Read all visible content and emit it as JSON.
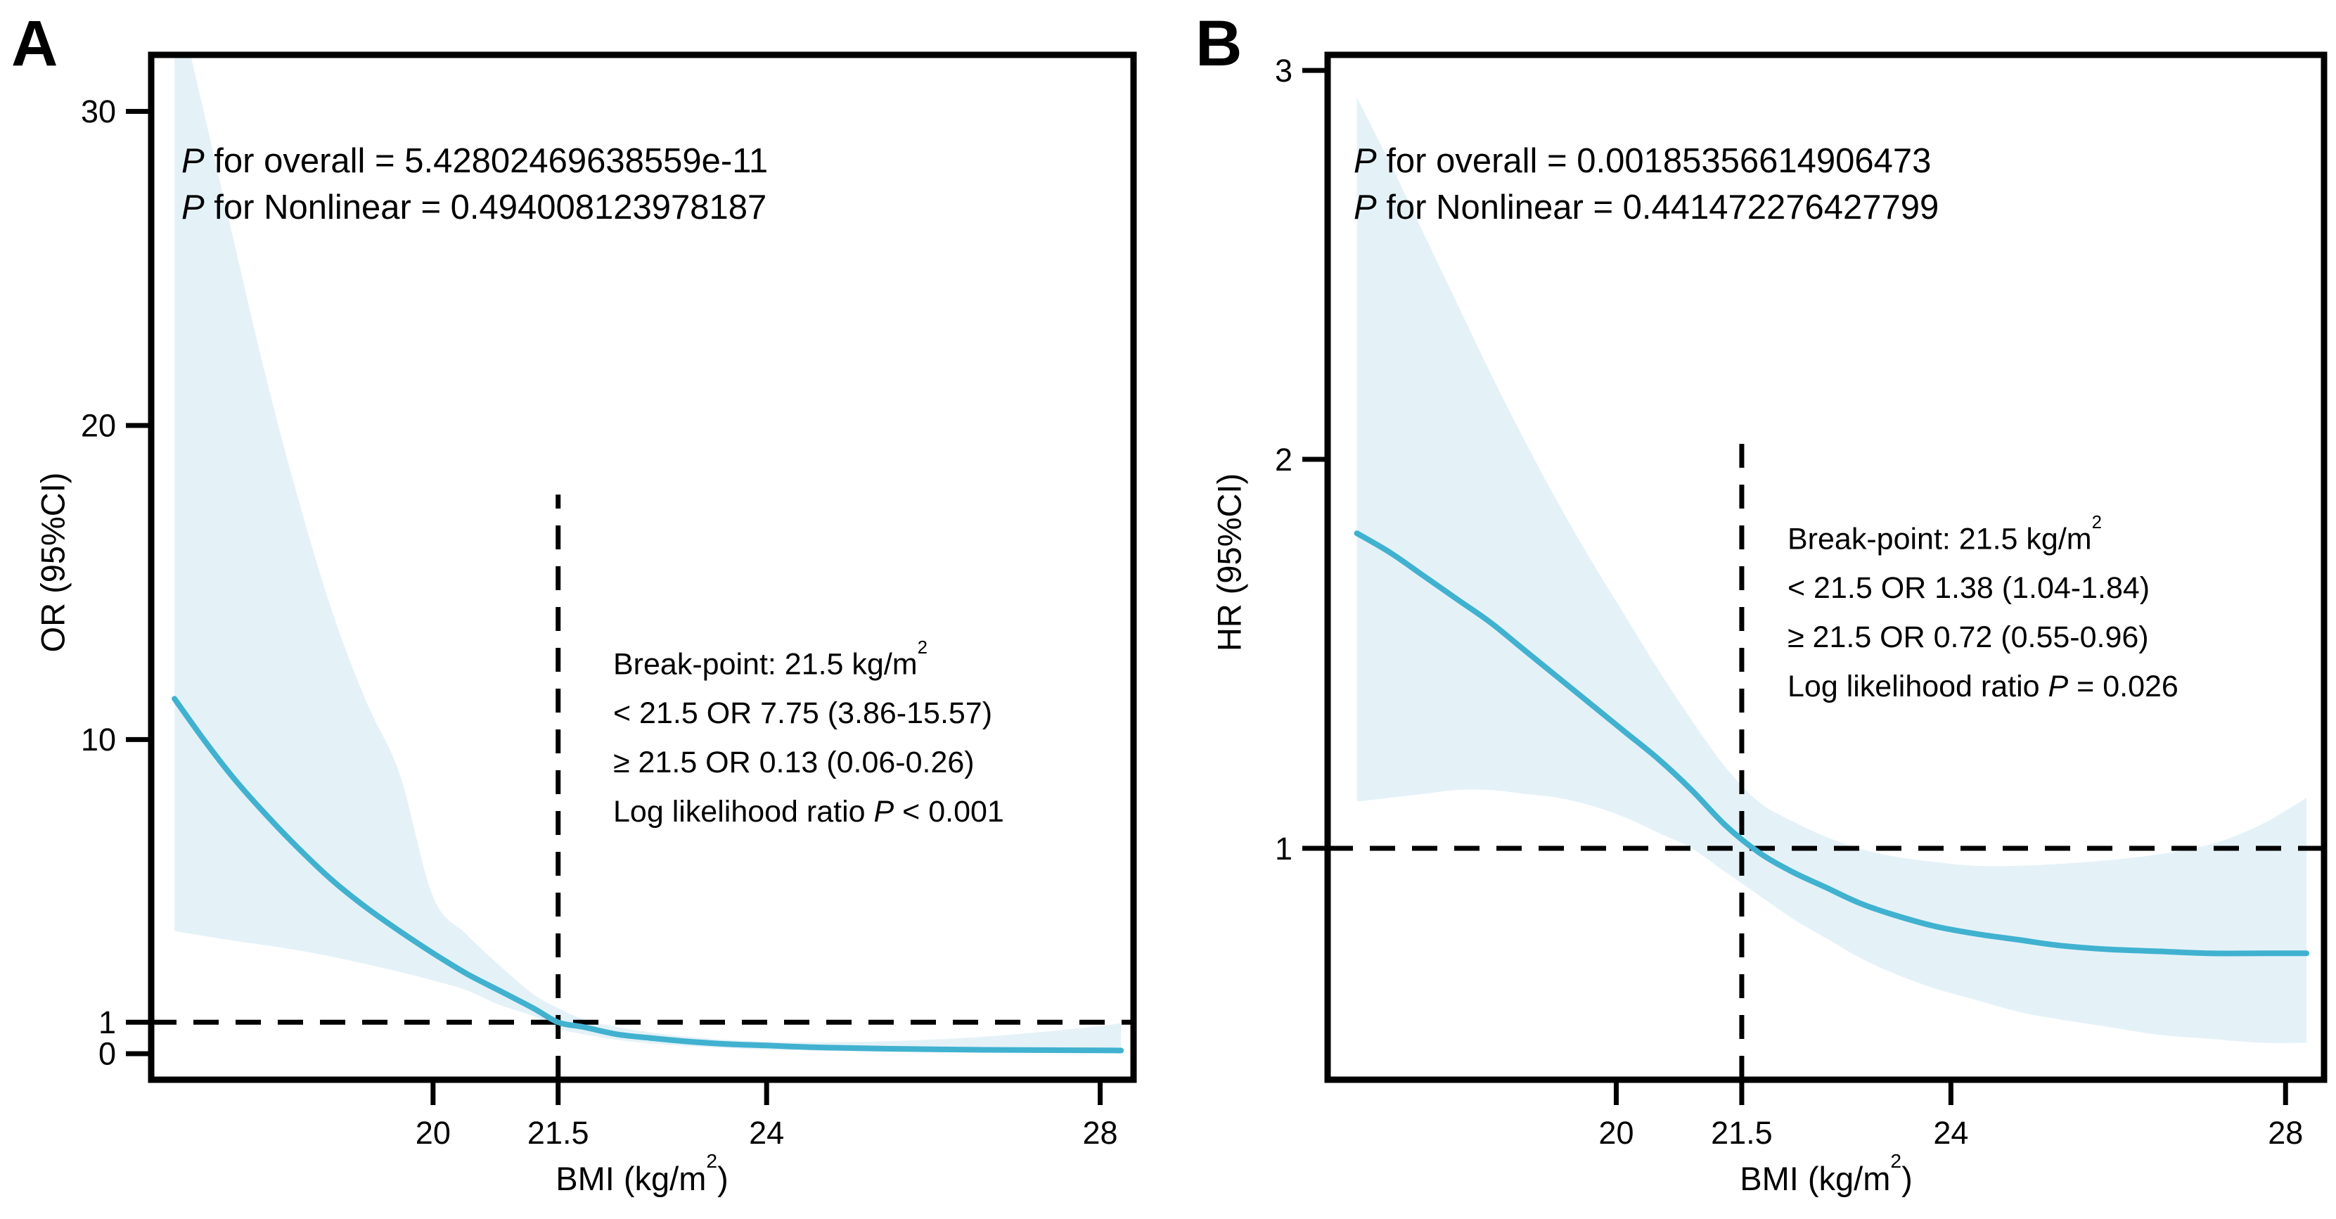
{
  "figure_title": "Piecewise restricted cubic spline figure",
  "style": {
    "curve_color": "#41b1d0",
    "band_color": "#e4f2f8",
    "axis_color": "#000000",
    "background": "#ffffff"
  },
  "chart_data": [
    {
      "panel_letter": "A",
      "type": "line",
      "title": "",
      "xlabel_prefix": "BMI (kg/m",
      "xlabel_sup": "2",
      "xlabel_suffix": ")",
      "ylabel": "OR (95%CI)",
      "xlim": [
        16.62,
        28.4
      ],
      "ylim": [
        -0.83,
        31.8
      ],
      "x_ticks": [
        20,
        21.5,
        24,
        28
      ],
      "x_tick_labels": [
        "20",
        "21.5",
        "24",
        "28"
      ],
      "y_ticks": [
        30,
        20,
        10,
        1,
        0
      ],
      "y_tick_labels": [
        "30",
        "20",
        "10",
        "1",
        "0"
      ],
      "grid": false,
      "legend": "none",
      "reference": {
        "hline": 1,
        "vline": 21.5,
        "vline_top": 17.8
      },
      "x": [
        16.9,
        17.25,
        17.6,
        18,
        18.4,
        18.8,
        19.2,
        19.6,
        20,
        20.4,
        20.8,
        21.2,
        21.5,
        21.8,
        22.2,
        22.6,
        23,
        23.5,
        24,
        24.5,
        25,
        25.5,
        26,
        26.5,
        27,
        27.5,
        28,
        28.25
      ],
      "series": [
        {
          "name": "OR",
          "values": [
            11.3,
            10.0,
            8.8,
            7.6,
            6.5,
            5.5,
            4.65,
            3.9,
            3.2,
            2.55,
            2.0,
            1.45,
            1.0,
            0.85,
            0.62,
            0.5,
            0.4,
            0.31,
            0.26,
            0.21,
            0.18,
            0.155,
            0.14,
            0.125,
            0.115,
            0.11,
            0.105,
            0.1
          ]
        },
        {
          "name": "lower 95%CI",
          "values": [
            3.9,
            3.75,
            3.6,
            3.45,
            3.28,
            3.08,
            2.85,
            2.6,
            2.33,
            2.02,
            1.55,
            1.2,
            0.8,
            0.62,
            0.44,
            0.33,
            0.25,
            0.18,
            0.13,
            0.1,
            0.075,
            0.06,
            0.05,
            0.042,
            0.036,
            0.032,
            0.03,
            0.03
          ]
        },
        {
          "name": "upper 95%CI",
          "values": [
            34,
            30,
            26,
            21.5,
            17.5,
            14,
            11.2,
            8.9,
            5.0,
            3.8,
            2.8,
            1.9,
            1.45,
            1.1,
            0.85,
            0.68,
            0.55,
            0.44,
            0.38,
            0.36,
            0.37,
            0.4,
            0.45,
            0.52,
            0.62,
            0.74,
            0.88,
            0.97
          ]
        }
      ],
      "stats": {
        "p_symbol": "P",
        "overall_rest": " for overall = 5.42802469638559e-11",
        "nonlinear_rest": " for Nonlinear = 0.494008123978187"
      },
      "annotation": {
        "line1_prefix": "Break-point: 21.5 kg/m",
        "line1_sup": "2",
        "line_lt": "< 21.5 OR 7.75 (3.86-15.57)",
        "line_ge": "≥ 21.5 OR 0.13 (0.06-0.26)",
        "line4_prefix": "Log likelihood ratio ",
        "line4_p": "P",
        "line4_suffix": " < 0.001"
      }
    },
    {
      "panel_letter": "B",
      "type": "line",
      "title": "",
      "xlabel_prefix": "BMI (kg/m",
      "xlabel_sup": "2",
      "xlabel_suffix": ")",
      "ylabel": "HR (95%CI)",
      "xlim": [
        16.55,
        28.46
      ],
      "ylim": [
        0.405,
        3.04
      ],
      "x_ticks": [
        20,
        21.5,
        24,
        28
      ],
      "x_tick_labels": [
        "20",
        "21.5",
        "24",
        "28"
      ],
      "y_ticks": [
        3,
        2,
        1
      ],
      "y_tick_labels": [
        "3",
        "2",
        "1"
      ],
      "grid": false,
      "legend": "none",
      "reference": {
        "hline": 1,
        "vline": 21.5,
        "vline_top": 2.06
      },
      "x": [
        16.9,
        17.3,
        17.7,
        18.1,
        18.5,
        18.9,
        19.3,
        19.7,
        20.1,
        20.5,
        20.9,
        21.3,
        21.7,
        22.1,
        22.5,
        22.9,
        23.3,
        23.8,
        24.3,
        24.8,
        25.3,
        25.9,
        26.5,
        27.1,
        27.7,
        28.25
      ],
      "series": [
        {
          "name": "HR",
          "values": [
            1.81,
            1.76,
            1.7,
            1.64,
            1.58,
            1.51,
            1.44,
            1.37,
            1.3,
            1.23,
            1.15,
            1.06,
            0.99,
            0.94,
            0.9,
            0.86,
            0.83,
            0.8,
            0.78,
            0.765,
            0.75,
            0.74,
            0.735,
            0.73,
            0.73,
            0.73
          ]
        },
        {
          "name": "lower 95%CI",
          "values": [
            1.12,
            1.13,
            1.14,
            1.15,
            1.15,
            1.14,
            1.13,
            1.11,
            1.08,
            1.04,
            1.0,
            0.94,
            0.88,
            0.82,
            0.77,
            0.72,
            0.68,
            0.64,
            0.61,
            0.58,
            0.56,
            0.54,
            0.52,
            0.51,
            0.5,
            0.5
          ]
        },
        {
          "name": "upper 95%CI",
          "values": [
            2.93,
            2.76,
            2.58,
            2.4,
            2.22,
            2.05,
            1.89,
            1.74,
            1.6,
            1.46,
            1.33,
            1.21,
            1.12,
            1.07,
            1.03,
            1.0,
            0.98,
            0.965,
            0.955,
            0.955,
            0.96,
            0.97,
            0.985,
            1.01,
            1.06,
            1.13
          ]
        }
      ],
      "stats": {
        "p_symbol": "P",
        "overall_rest": " for overall = 0.00185356614906473",
        "nonlinear_rest": " for Nonlinear = 0.441472276427799"
      },
      "annotation": {
        "line1_prefix": "Break-point: 21.5 kg/m",
        "line1_sup": "2",
        "line_lt": "< 21.5 OR 1.38 (1.04-1.84)",
        "line_ge": "≥ 21.5 OR 0.72 (0.55-0.96)",
        "line4_prefix": "Log likelihood ratio ",
        "line4_p": "P",
        "line4_suffix": " = 0.026"
      }
    }
  ]
}
